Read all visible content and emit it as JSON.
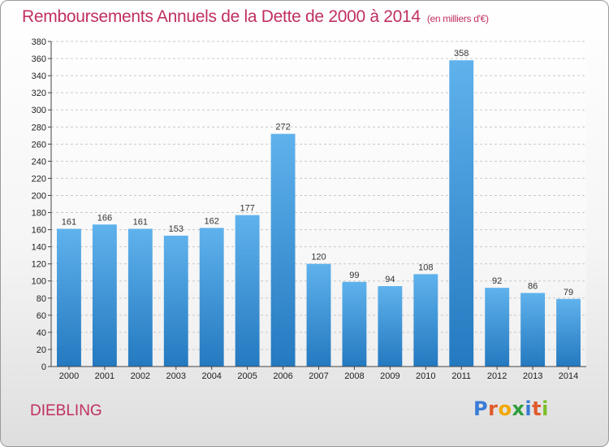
{
  "header": {
    "title": "Remboursements Annuels de la Dette de 2000 à 2014",
    "unit": "(en milliers d'€)"
  },
  "footer": {
    "place": "DIEBLING",
    "logo_text": "Proxiti",
    "logo_colors": [
      "#3a7bd5",
      "#e05a2b",
      "#f2a800",
      "#2e9e3e",
      "#3a7bd5",
      "#e05a2b",
      "#7bbf2a"
    ]
  },
  "colors": {
    "bar_top": "#5fb2ec",
    "bar_bottom": "#2479c0",
    "accent": "#c0305e"
  },
  "chart_data": {
    "type": "bar",
    "title": "Remboursements Annuels de la Dette de 2000 à 2014",
    "subtitle": "(en milliers d'€)",
    "xlabel": "",
    "ylabel": "",
    "categories": [
      "2000",
      "2001",
      "2002",
      "2003",
      "2004",
      "2005",
      "2006",
      "2007",
      "2008",
      "2009",
      "2010",
      "2011",
      "2012",
      "2013",
      "2014"
    ],
    "values": [
      161,
      166,
      161,
      153,
      162,
      177,
      272,
      120,
      99,
      94,
      108,
      358,
      92,
      86,
      79
    ],
    "ylim": [
      0,
      380
    ],
    "ytick_step": 20,
    "grid": true,
    "legend": "none"
  }
}
